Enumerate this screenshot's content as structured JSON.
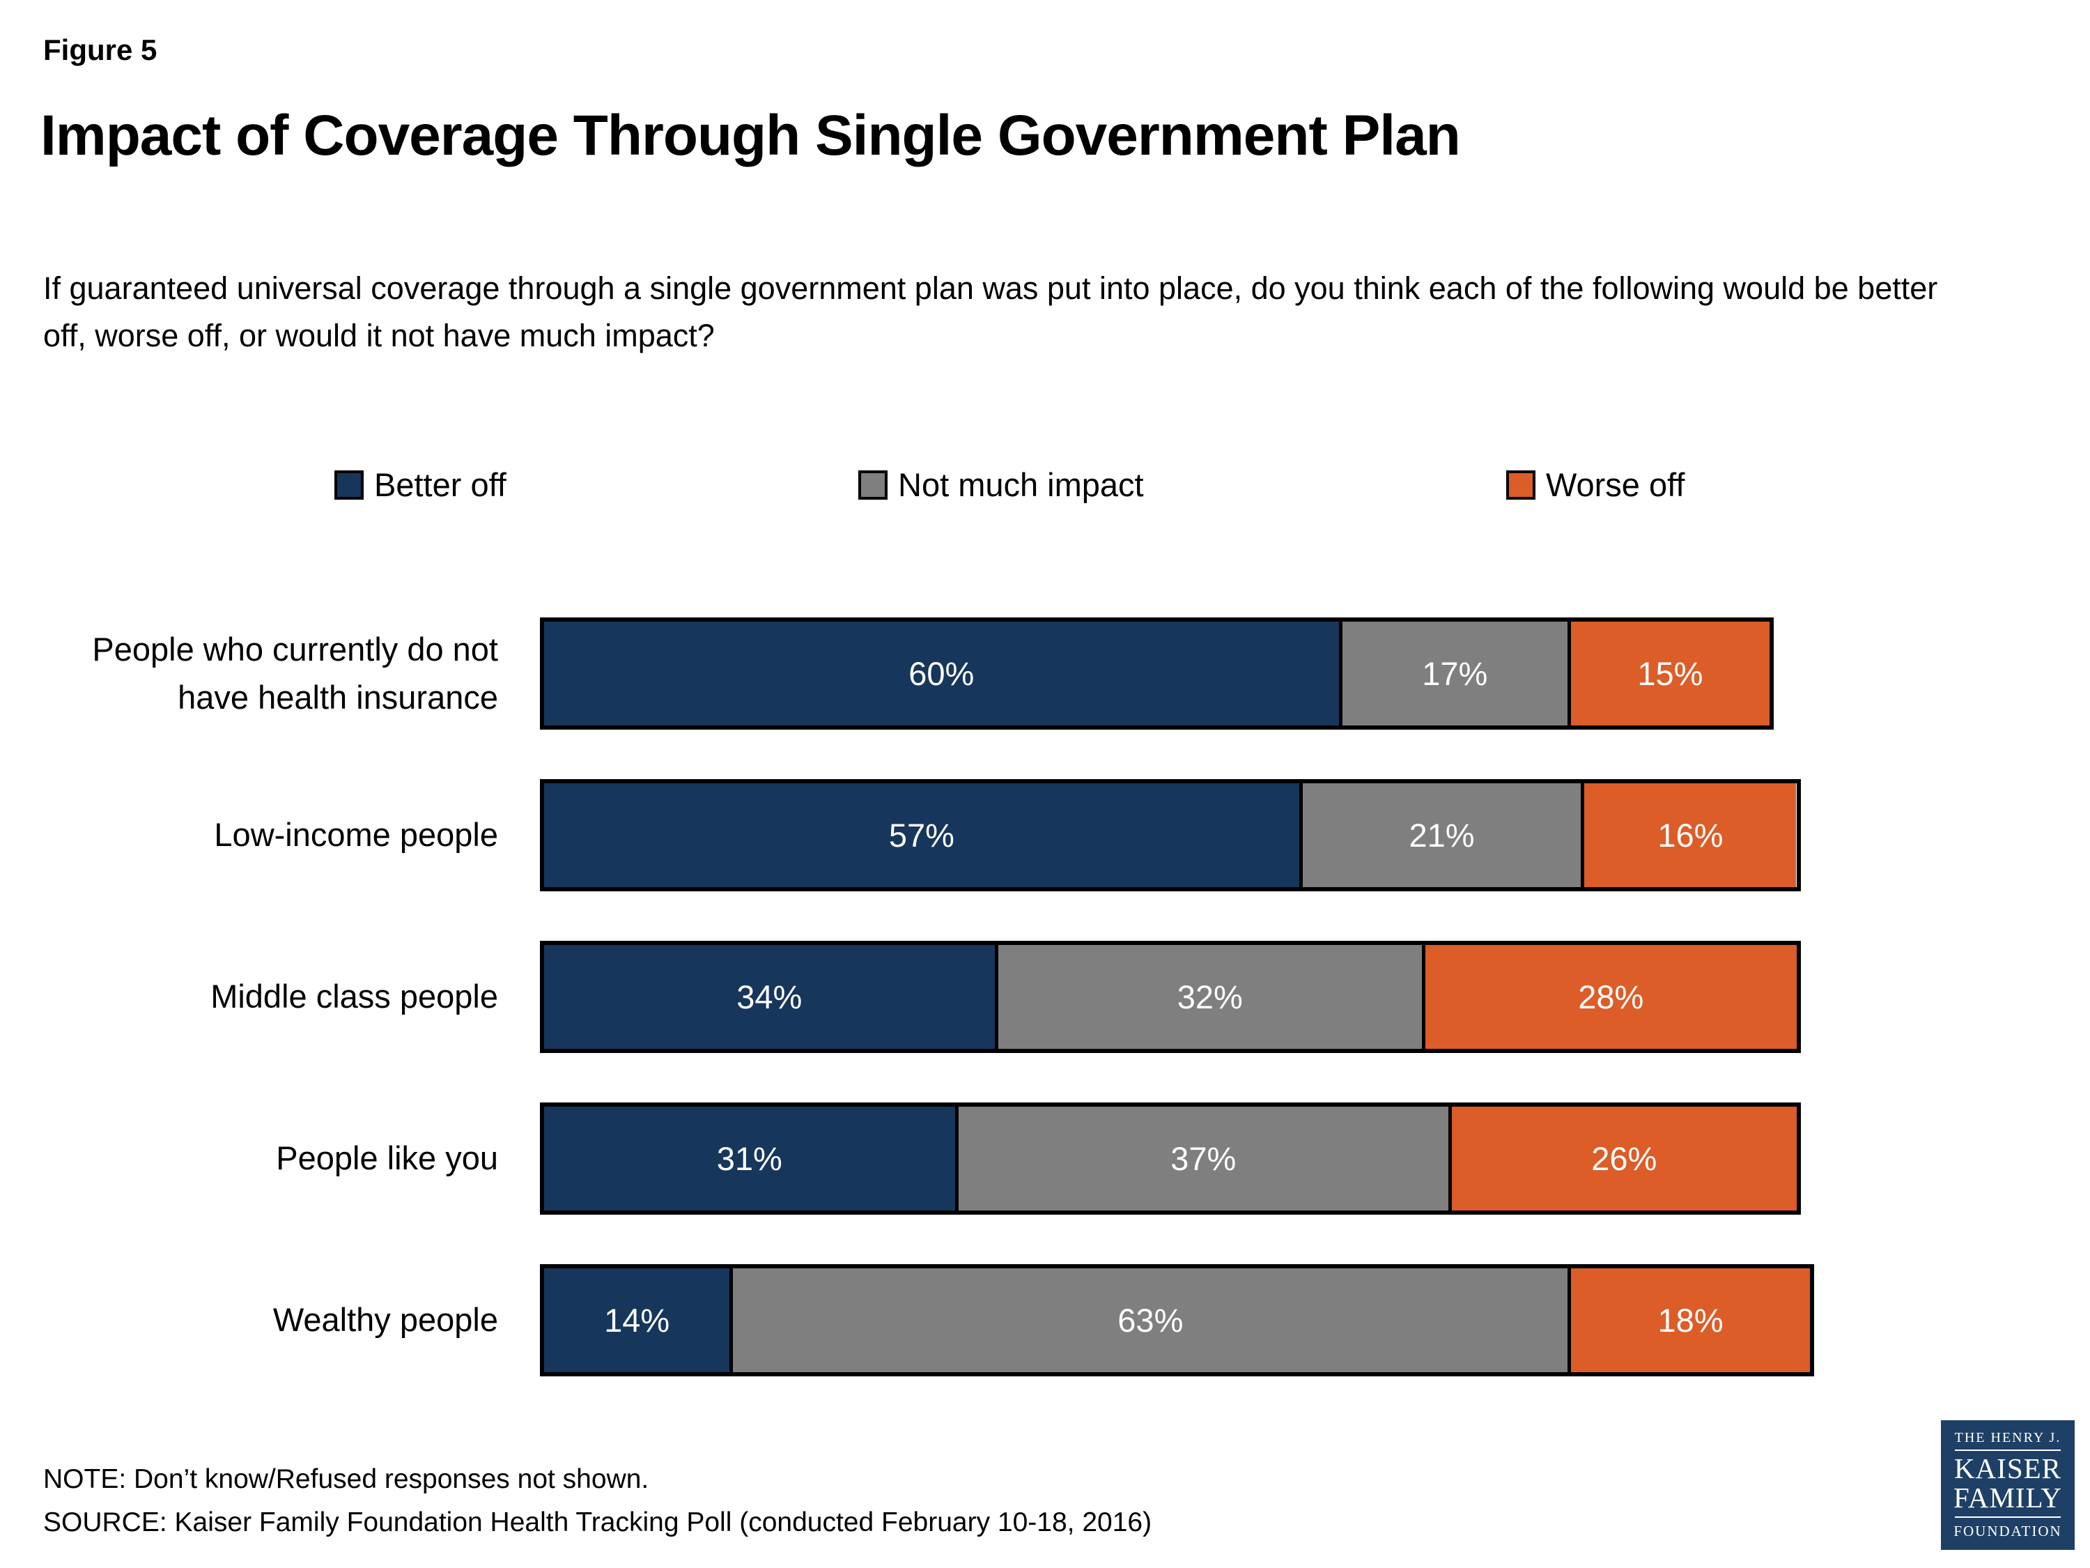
{
  "figure_label": "Figure 5",
  "title": "Impact of Coverage Through Single Government Plan",
  "subtitle": "If guaranteed universal coverage through a single government plan was put into place, do you think each of the following would be better off, worse off, or would it not have much impact?",
  "colors": {
    "better": "#16365C",
    "not_much": "#7F7F7F",
    "worse": "#DC5D28",
    "logo_navy": "#1F4066"
  },
  "legend": [
    {
      "label": "Better off",
      "key": "better"
    },
    {
      "label": "Not much impact",
      "key": "not_much"
    },
    {
      "label": "Worse off",
      "key": "worse"
    }
  ],
  "chart_data": {
    "type": "bar",
    "orientation": "horizontal",
    "stacked": true,
    "title": "Impact of Coverage Through Single Government Plan",
    "categories": [
      "People who currently do not have health insurance",
      "Low-income people",
      "Middle class people",
      "People like you",
      "Wealthy people"
    ],
    "series": [
      {
        "name": "Better off",
        "key": "better",
        "values": [
          60,
          57,
          34,
          31,
          14
        ]
      },
      {
        "name": "Not much impact",
        "key": "not_much",
        "values": [
          17,
          21,
          32,
          37,
          63
        ]
      },
      {
        "name": "Worse off",
        "key": "worse",
        "values": [
          15,
          16,
          28,
          26,
          18
        ]
      }
    ],
    "value_suffix": "%",
    "xlim": [
      0,
      100
    ],
    "grid": false,
    "legend_position": "top"
  },
  "notes": {
    "note": "NOTE: Don’t know/Refused responses not shown.",
    "source": "SOURCE: Kaiser Family Foundation Health Tracking Poll (conducted February 10-18, 2016)"
  },
  "logo": {
    "lines": [
      "THE HENRY J.",
      "KAISER",
      "FAMILY",
      "FOUNDATION"
    ]
  }
}
